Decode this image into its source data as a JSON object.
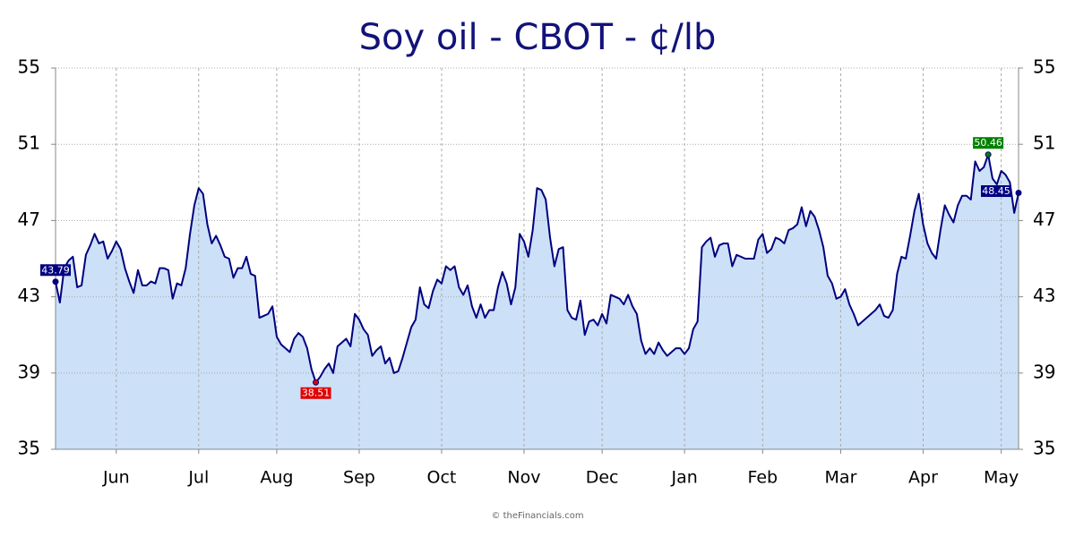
{
  "chart_data": {
    "type": "area",
    "title": "Soy oil - CBOT - ¢/lb",
    "source": "© theFinancials.com",
    "color": "#000080",
    "fill": "#cce0f7",
    "low_color": "#e00000",
    "high_color": "#008000",
    "grid": true,
    "ylim": [
      35,
      55
    ],
    "yticks": [
      35,
      39,
      43,
      47,
      51,
      55
    ],
    "right_axis": true,
    "categories": [
      null,
      null,
      null,
      null,
      null,
      null,
      null,
      null,
      null,
      null,
      null,
      null,
      null,
      null,
      "Jun",
      null,
      null,
      null,
      null,
      null,
      null,
      null,
      null,
      null,
      null,
      null,
      null,
      null,
      null,
      null,
      null,
      null,
      null,
      "Jul",
      null,
      null,
      null,
      null,
      null,
      null,
      null,
      null,
      null,
      null,
      null,
      null,
      null,
      null,
      null,
      null,
      null,
      "Aug",
      null,
      null,
      null,
      null,
      null,
      null,
      null,
      null,
      null,
      null,
      null,
      null,
      null,
      null,
      null,
      null,
      null,
      null,
      "Sep",
      null,
      null,
      null,
      null,
      null,
      null,
      null,
      null,
      null,
      null,
      null,
      null,
      null,
      null,
      null,
      null,
      null,
      null,
      "Oct",
      null,
      null,
      null,
      null,
      null,
      null,
      null,
      null,
      null,
      null,
      null,
      null,
      null,
      null,
      null,
      null,
      null,
      null,
      "Nov",
      null,
      null,
      null,
      null,
      null,
      null,
      null,
      null,
      null,
      null,
      null,
      null,
      null,
      null,
      null,
      null,
      null,
      "Dec",
      null,
      null,
      null,
      null,
      null,
      null,
      null,
      null,
      null,
      null,
      null,
      null,
      null,
      null,
      null,
      null,
      null,
      null,
      "Jan",
      null,
      null,
      null,
      null,
      null,
      null,
      null,
      null,
      null,
      null,
      null,
      null,
      null,
      null,
      null,
      null,
      null,
      "Feb",
      null,
      null,
      null,
      null,
      null,
      null,
      null,
      null,
      null,
      null,
      null,
      null,
      null,
      null,
      null,
      null,
      null,
      "Mar",
      null,
      null,
      null,
      null,
      null,
      null,
      null,
      null,
      null,
      null,
      null,
      null,
      null,
      null,
      null,
      null,
      null,
      null,
      "Apr",
      null,
      null,
      null,
      null,
      null,
      null,
      null,
      null,
      null,
      null,
      null,
      null,
      null,
      null,
      null,
      null,
      null,
      "May",
      null,
      null,
      null,
      null
    ],
    "values": [
      43.79,
      42.7,
      44.5,
      44.9,
      45.1,
      43.5,
      43.6,
      45.2,
      45.7,
      46.3,
      45.8,
      45.9,
      45.0,
      45.4,
      45.9,
      45.5,
      44.5,
      43.8,
      43.2,
      44.4,
      43.6,
      43.6,
      43.8,
      43.7,
      44.5,
      44.5,
      44.4,
      42.9,
      43.7,
      43.6,
      44.5,
      46.3,
      47.8,
      48.7,
      48.4,
      46.8,
      45.8,
      46.2,
      45.7,
      45.1,
      45.0,
      44.0,
      44.5,
      44.5,
      45.1,
      44.2,
      44.1,
      41.9,
      42.0,
      42.1,
      42.5,
      40.9,
      40.5,
      40.3,
      40.1,
      40.8,
      41.1,
      40.9,
      40.3,
      39.2,
      38.51,
      38.8,
      39.2,
      39.5,
      39.0,
      40.4,
      40.6,
      40.8,
      40.4,
      42.1,
      41.8,
      41.3,
      41.0,
      39.9,
      40.2,
      40.4,
      39.5,
      39.8,
      39.0,
      39.1,
      39.8,
      40.6,
      41.4,
      41.8,
      43.5,
      42.6,
      42.4,
      43.3,
      43.9,
      43.7,
      44.6,
      44.4,
      44.6,
      43.5,
      43.1,
      43.6,
      42.5,
      41.9,
      42.6,
      41.9,
      42.3,
      42.3,
      43.5,
      44.3,
      43.7,
      42.6,
      43.5,
      46.3,
      45.9,
      45.1,
      46.5,
      48.7,
      48.6,
      48.1,
      46.1,
      44.6,
      45.5,
      45.6,
      42.3,
      41.9,
      41.8,
      42.8,
      41.0,
      41.7,
      41.8,
      41.5,
      42.1,
      41.6,
      43.1,
      43.0,
      42.9,
      42.6,
      43.1,
      42.5,
      42.1,
      40.7,
      40.0,
      40.3,
      40.0,
      40.6,
      40.2,
      39.9,
      40.1,
      40.3,
      40.3,
      40.0,
      40.3,
      41.3,
      41.7,
      45.6,
      45.9,
      46.1,
      45.1,
      45.7,
      45.8,
      45.8,
      44.6,
      45.2,
      45.1,
      45.0,
      45.0,
      45.0,
      46.0,
      46.3,
      45.3,
      45.5,
      46.1,
      46.0,
      45.8,
      46.5,
      46.6,
      46.8,
      47.7,
      46.7,
      47.5,
      47.2,
      46.5,
      45.6,
      44.1,
      43.7,
      42.9,
      43.0,
      43.4,
      42.6,
      42.1,
      41.5,
      41.7,
      41.9,
      42.1,
      42.3,
      42.6,
      42.0,
      41.9,
      42.3,
      44.2,
      45.1,
      45.0,
      46.2,
      47.5,
      48.4,
      46.8,
      45.8,
      45.3,
      45.0,
      46.5,
      47.8,
      47.3,
      46.9,
      47.8,
      48.3,
      48.3,
      48.1,
      50.1,
      49.6,
      49.8,
      50.46,
      49.2,
      48.9,
      49.6,
      49.4,
      49.0,
      47.4,
      48.45
    ]
  }
}
